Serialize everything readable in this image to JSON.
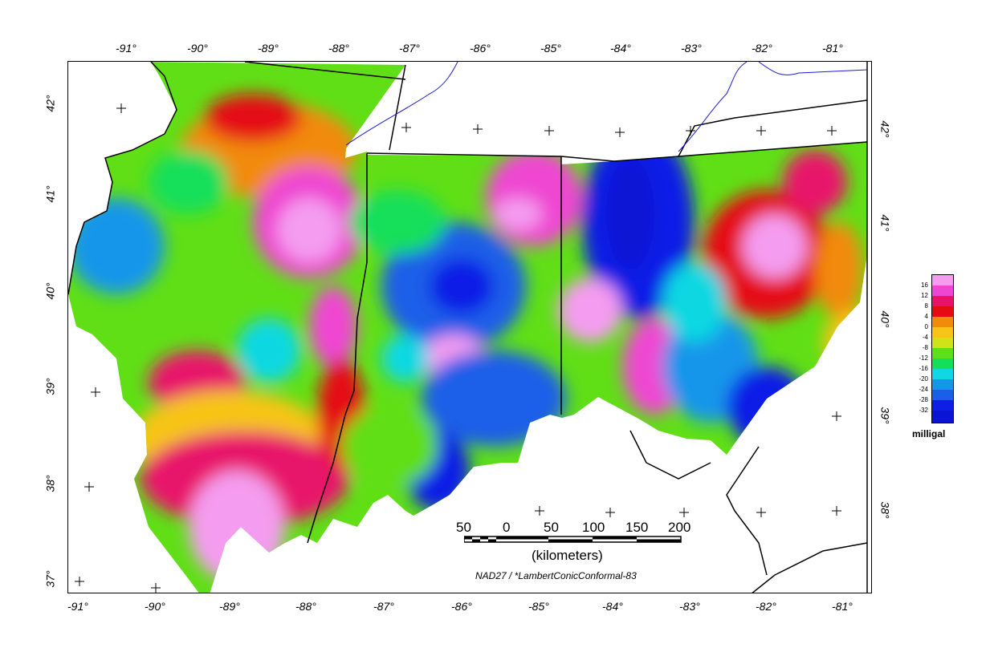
{
  "lon_top": [
    "-91°",
    "-90°",
    "-89°",
    "-88°",
    "-87°",
    "-86°",
    "-85°",
    "-84°",
    "-83°",
    "-82°",
    "-81°"
  ],
  "lon_bottom": [
    "-91°",
    "-90°",
    "-89°",
    "-88°",
    "-87°",
    "-86°",
    "-85°",
    "-84°",
    "-83°",
    "-82°",
    "-81°"
  ],
  "lat_left": [
    "42°",
    "41°",
    "40°",
    "39°",
    "38°",
    "37°"
  ],
  "lat_right": [
    "42°",
    "41°",
    "40°",
    "39°",
    "38°"
  ],
  "legend": {
    "unit": "milligal",
    "labels": [
      "16",
      "12",
      "8",
      "4",
      "0",
      "-4",
      "-8",
      "-12",
      "-16",
      "-20",
      "-24",
      "-28",
      "-32"
    ],
    "colors": [
      "#f49cf0",
      "#ef46d2",
      "#e8126a",
      "#e50b13",
      "#f28a0c",
      "#f7c417",
      "#cee418",
      "#60df16",
      "#13df5a",
      "#10d8e2",
      "#1696ea",
      "#1b5ee8",
      "#0d1ee6",
      "#0a14d4"
    ]
  },
  "scale_bar": {
    "labels": [
      "50",
      "0",
      "50",
      "100",
      "150",
      "200"
    ],
    "unit_label": "(kilometers)"
  },
  "projection": "NAD27 / *LambertConicConformal-83"
}
